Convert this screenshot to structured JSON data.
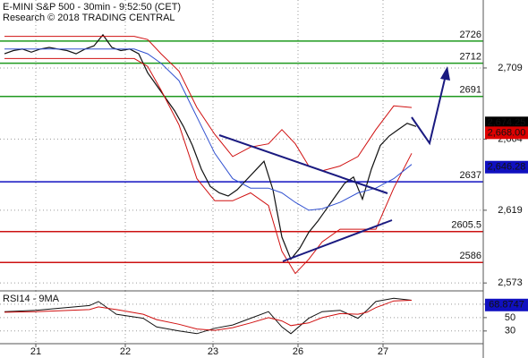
{
  "chart_data": [
    {
      "type": "line",
      "title": "E-MINI S&P 500 - 30min - 9:52:50 (CET)",
      "subtitle": "Research © 2018 TRADING CENTRAL",
      "xlim": [
        0,
        54
      ],
      "ylim": [
        2568,
        2752
      ],
      "yticks": [
        {
          "value": 2573,
          "label": "2,573"
        },
        {
          "value": 2619,
          "label": "2,619"
        },
        {
          "value": 2664,
          "label": "2,664"
        },
        {
          "value": 2709,
          "label": "2,709"
        }
      ],
      "grid": true,
      "levels": {
        "values": [
          2726,
          2712,
          2691,
          2637,
          2605.5,
          2586
        ],
        "colors": [
          "#1f9a1f",
          "#1f9a1f",
          "#1f9a1f",
          "#1010c0",
          "#cc1111",
          "#cc1111"
        ]
      },
      "series": [
        {
          "color": "#111111",
          "width": 1.2,
          "x": [
            0.5,
            1.5,
            2.5,
            3.5,
            4.5,
            5.5,
            6.5,
            7.5,
            8.5,
            9.5,
            10.5,
            11.5,
            12.5,
            13.5,
            14.5,
            15.5,
            16.5,
            17.5,
            18.5,
            19.5,
            20.5,
            21.5,
            22.5,
            23.5,
            24.5,
            25.5,
            26.5,
            27.5,
            28.5,
            29.5,
            30.5,
            31.5,
            32.5,
            33.5,
            34.5,
            35.5,
            36.5,
            37.5,
            38.5,
            39.5,
            40.5,
            41.5,
            42.5,
            43.5,
            44.5,
            45.5,
            46.5
          ],
          "values": [
            2718,
            2720,
            2721,
            2719,
            2721,
            2722,
            2721,
            2720,
            2718,
            2721,
            2723,
            2730,
            2722,
            2720,
            2721,
            2718,
            2706,
            2698,
            2690,
            2682,
            2672,
            2660,
            2645,
            2634,
            2630,
            2628,
            2632,
            2638,
            2644,
            2650,
            2632,
            2602,
            2588,
            2595,
            2605,
            2612,
            2620,
            2628,
            2636,
            2640,
            2626,
            2645,
            2660,
            2666,
            2670,
            2674,
            2672
          ]
        },
        {
          "color": "#d01010",
          "width": 1,
          "x": [
            0.5,
            15,
            16.5,
            18,
            20,
            22,
            24,
            26,
            28,
            30,
            31.5,
            33,
            34.5,
            36,
            38,
            40,
            42,
            44,
            46
          ],
          "values": [
            2729,
            2729,
            2727,
            2718,
            2707,
            2684,
            2667,
            2653,
            2659,
            2661,
            2670,
            2661,
            2647,
            2644,
            2647,
            2653,
            2670,
            2685,
            2684
          ]
        },
        {
          "color": "#d01010",
          "width": 1,
          "x": [
            0.5,
            15,
            16.5,
            18,
            20,
            22,
            24,
            26,
            28,
            30,
            31.5,
            33,
            34.5,
            36,
            38,
            40,
            42,
            44,
            46
          ],
          "values": [
            2715,
            2715,
            2710,
            2695,
            2673,
            2639,
            2625,
            2625,
            2630,
            2622,
            2593,
            2579,
            2588,
            2599,
            2607,
            2607,
            2607,
            2633,
            2655
          ]
        },
        {
          "color": "#3050d0",
          "width": 1,
          "x": [
            0.5,
            15,
            16.5,
            18,
            20,
            22,
            24,
            26,
            28,
            30,
            31.5,
            33,
            34.5,
            36,
            38,
            40,
            42,
            44,
            46
          ],
          "values": [
            2721,
            2721,
            2718,
            2712,
            2701,
            2678,
            2655,
            2639,
            2633,
            2633,
            2630,
            2624,
            2619,
            2620,
            2624,
            2630,
            2633,
            2639,
            2648
          ]
        }
      ],
      "price_boxes": {
        "values": [
          2674.25,
          2668.0,
          2646.28
        ],
        "value_labels": [
          "2,674.25",
          "2,668.00",
          "2,646.28"
        ],
        "colors": [
          "#000000",
          "#dd0000",
          "#1010c0"
        ]
      }
    },
    {
      "type": "line",
      "title": "RSI14 - 9MA",
      "xlim": [
        0,
        54
      ],
      "ylim": [
        11,
        90
      ],
      "yticks": [
        30,
        50,
        70
      ],
      "grid": true,
      "xticks": [
        {
          "value": 4,
          "label": "21"
        },
        {
          "value": 14,
          "label": "22"
        },
        {
          "value": 23.8,
          "label": "23"
        },
        {
          "value": 33.3,
          "label": "26"
        },
        {
          "value": 42.8,
          "label": "27"
        }
      ],
      "series": [
        {
          "color": "#111111",
          "width": 1,
          "x": [
            0.5,
            4,
            10,
            11,
            13,
            16,
            17.5,
            20,
            22,
            24,
            26,
            28,
            30,
            31.5,
            32.5,
            34.5,
            36,
            38,
            40,
            41,
            42,
            44,
            46
          ],
          "values": [
            59,
            61,
            68,
            74,
            55,
            49,
            36,
            30,
            26,
            34,
            39,
            49,
            59,
            36,
            26,
            49,
            59,
            61,
            49,
            61,
            74,
            79,
            76
          ]
        },
        {
          "color": "#d01010",
          "width": 1,
          "x": [
            0.5,
            4,
            10,
            11,
            13,
            16,
            17.5,
            20,
            22,
            24,
            26,
            28,
            30,
            31.5,
            32.5,
            34.5,
            36,
            38,
            40,
            41,
            42,
            44,
            46
          ],
          "values": [
            58,
            59,
            62,
            66,
            62,
            55,
            47,
            40,
            33,
            31,
            35,
            42,
            50,
            45,
            38,
            42,
            50,
            56,
            55,
            58,
            65,
            75,
            76
          ]
        }
      ],
      "last_value": 68.8747,
      "last_color": "#1010c0"
    }
  ]
}
